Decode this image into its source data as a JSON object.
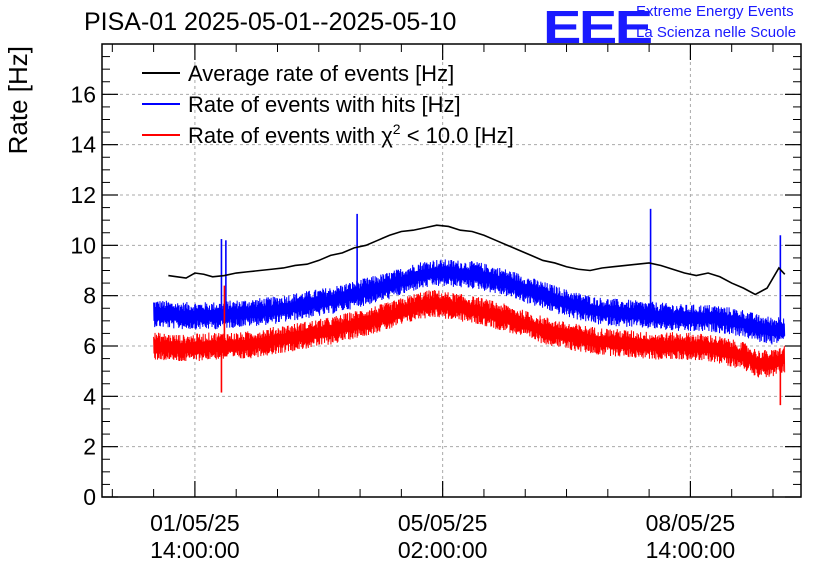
{
  "header": {
    "title": "PISA-01 2025-05-01--2025-05-10",
    "logo_text": "EEE",
    "org_line1": "Extreme Energy Events",
    "org_line2": "La Scienza nelle Scuole"
  },
  "colors": {
    "average": "#000000",
    "hits": "#0000ff",
    "chi2": "#ff0000",
    "logo": "#1a1aff",
    "grid": "#aaaaaa"
  },
  "chart_data": {
    "type": "line",
    "title": "PISA-01 2025-05-01--2025-05-10",
    "xlabel": "",
    "ylabel": "Rate [Hz]",
    "ylim": [
      0,
      18
    ],
    "xlim_hours": [
      -17.5,
      219.5
    ],
    "grid": true,
    "legend_position": "top-left",
    "y_ticks": [
      0,
      2,
      4,
      6,
      8,
      10,
      12,
      14,
      16
    ],
    "x_ticks": [
      {
        "hour": 14,
        "line1": "01/05/25",
        "line2": "14:00:00"
      },
      {
        "hour": 98,
        "line1": "05/05/25",
        "line2": "02:00:00"
      },
      {
        "hour": 182,
        "line1": "08/05/25",
        "line2": "14:00:00"
      }
    ],
    "legend": [
      {
        "key": "average",
        "label": "Average rate of events [Hz]"
      },
      {
        "key": "hits",
        "label": "Rate of events with hits [Hz]"
      },
      {
        "key": "chi2",
        "label_prefix": "Rate of events with ",
        "label_symbol": "χ",
        "label_sup": "2",
        "label_suffix": " < 10.0 [Hz]"
      }
    ],
    "series": [
      {
        "name": "Average rate of events [Hz]",
        "key": "average",
        "x_hours": [
          5,
          8,
          11,
          14,
          17,
          20,
          24,
          28,
          32,
          36,
          40,
          44,
          48,
          52,
          56,
          60,
          64,
          68,
          72,
          76,
          80,
          84,
          88,
          92,
          96,
          100,
          104,
          108,
          112,
          116,
          120,
          124,
          128,
          132,
          136,
          140,
          144,
          148,
          152,
          156,
          160,
          164,
          168,
          172,
          176,
          180,
          184,
          188,
          192,
          196,
          200,
          204,
          208,
          212,
          214
        ],
        "values": [
          8.8,
          8.75,
          8.7,
          8.9,
          8.85,
          8.75,
          8.8,
          8.9,
          8.95,
          9.0,
          9.05,
          9.1,
          9.2,
          9.25,
          9.4,
          9.6,
          9.7,
          9.9,
          10.0,
          10.2,
          10.4,
          10.55,
          10.6,
          10.7,
          10.8,
          10.75,
          10.6,
          10.55,
          10.4,
          10.2,
          10.0,
          9.8,
          9.6,
          9.4,
          9.3,
          9.15,
          9.05,
          9.0,
          9.1,
          9.15,
          9.2,
          9.25,
          9.3,
          9.2,
          9.05,
          8.9,
          8.8,
          8.9,
          8.75,
          8.5,
          8.3,
          8.05,
          8.3,
          9.1,
          8.85
        ]
      },
      {
        "name": "Rate of events with hits [Hz]",
        "key": "hits",
        "x_hours": [
          0,
          10,
          20,
          30,
          40,
          50,
          60,
          70,
          80,
          90,
          95,
          100,
          110,
          120,
          130,
          140,
          150,
          160,
          170,
          180,
          190,
          200,
          205,
          210,
          214
        ],
        "values": [
          7.3,
          7.2,
          7.2,
          7.3,
          7.4,
          7.6,
          7.8,
          8.1,
          8.4,
          8.8,
          8.9,
          8.9,
          8.8,
          8.5,
          8.1,
          7.7,
          7.4,
          7.3,
          7.2,
          7.1,
          7.1,
          6.9,
          6.7,
          6.6,
          6.7
        ],
        "band_halfwidth": 0.55,
        "spikes": [
          {
            "hour": 23,
            "value": 10.25
          },
          {
            "hour": 24.5,
            "value": 10.2
          },
          {
            "hour": 69,
            "value": 11.25
          },
          {
            "hour": 168.5,
            "value": 11.45
          },
          {
            "hour": 212.5,
            "value": 10.4
          }
        ]
      },
      {
        "name": "Rate of events with χ² < 10.0 [Hz]",
        "key": "chi2",
        "x_hours": [
          0,
          10,
          20,
          30,
          40,
          50,
          60,
          70,
          80,
          90,
          95,
          100,
          110,
          120,
          130,
          140,
          150,
          160,
          170,
          180,
          190,
          200,
          205,
          210,
          214
        ],
        "values": [
          6.0,
          5.9,
          6.0,
          6.0,
          6.2,
          6.4,
          6.6,
          6.9,
          7.2,
          7.6,
          7.7,
          7.6,
          7.4,
          7.1,
          6.7,
          6.4,
          6.2,
          6.1,
          6.0,
          6.0,
          5.9,
          5.6,
          5.3,
          5.3,
          5.5
        ],
        "band_halfwidth": 0.55,
        "spikes": [
          {
            "hour": 23,
            "value": 4.15
          },
          {
            "hour": 24,
            "value": 8.4
          },
          {
            "hour": 212.5,
            "value": 3.65
          }
        ]
      }
    ]
  }
}
